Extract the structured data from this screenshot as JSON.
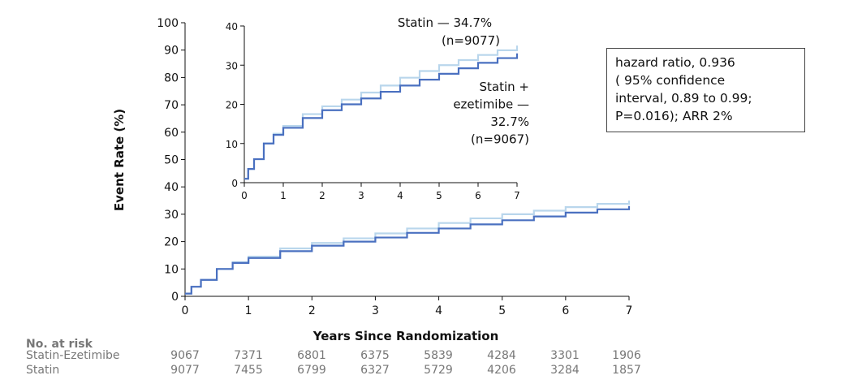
{
  "chart_data": [
    {
      "type": "line",
      "name": "main",
      "ylabel": "Event Rate (%)",
      "xlabel": "Years Since Randomization",
      "xlim": [
        0,
        7
      ],
      "ylim": [
        0,
        100
      ],
      "xticks": [
        0,
        1,
        2,
        3,
        4,
        5,
        6,
        7
      ],
      "yticks": [
        0,
        10,
        20,
        30,
        40,
        50,
        60,
        70,
        80,
        90,
        100
      ],
      "grid": false,
      "series": [
        {
          "name": "Statin",
          "color": "#b9d6ec",
          "x": [
            0,
            0.1,
            0.25,
            0.5,
            0.75,
            1,
            1.5,
            2,
            2.5,
            3,
            3.5,
            4,
            4.5,
            5,
            5.5,
            6,
            6.5,
            7
          ],
          "y": [
            1,
            3.5,
            6,
            10,
            12.5,
            14.5,
            17.5,
            19.5,
            21.2,
            23,
            24.8,
            26.8,
            28.5,
            30,
            31.3,
            32.6,
            33.8,
            35
          ]
        },
        {
          "name": "Statin + ezetimibe",
          "color": "#4a70c0",
          "x": [
            0,
            0.1,
            0.25,
            0.5,
            0.75,
            1,
            1.5,
            2,
            2.5,
            3,
            3.5,
            4,
            4.5,
            5,
            5.5,
            6,
            6.5,
            7
          ],
          "y": [
            1,
            3.5,
            6,
            10,
            12.2,
            14,
            16.5,
            18.5,
            20,
            21.5,
            23.2,
            24.8,
            26.3,
            27.8,
            29.2,
            30.6,
            31.8,
            33
          ]
        }
      ]
    },
    {
      "type": "line",
      "name": "inset",
      "xlim": [
        0,
        7
      ],
      "ylim": [
        0,
        40
      ],
      "xticks": [
        0,
        1,
        2,
        3,
        4,
        5,
        6,
        7
      ],
      "yticks": [
        0,
        10,
        20,
        30,
        40
      ],
      "annotations": [
        {
          "lines": [
            "Statin — 34.7%",
            "(n=9077)"
          ]
        },
        {
          "lines": [
            "Statin +",
            "ezetimibe —",
            "32.7%",
            "(n=9067)"
          ]
        }
      ],
      "series": [
        {
          "name": "Statin",
          "color": "#b9d6ec",
          "x": [
            0,
            0.1,
            0.25,
            0.5,
            0.75,
            1,
            1.5,
            2,
            2.5,
            3,
            3.5,
            4,
            4.5,
            5,
            5.5,
            6,
            6.5,
            7
          ],
          "y": [
            1,
            3.5,
            6,
            10,
            12.5,
            14.5,
            17.5,
            19.5,
            21.2,
            23,
            24.8,
            26.8,
            28.5,
            30,
            31.3,
            32.6,
            33.8,
            35
          ]
        },
        {
          "name": "Statin + ezetimibe",
          "color": "#4a70c0",
          "x": [
            0,
            0.1,
            0.25,
            0.5,
            0.75,
            1,
            1.5,
            2,
            2.5,
            3,
            3.5,
            4,
            4.5,
            5,
            5.5,
            6,
            6.5,
            7
          ],
          "y": [
            1,
            3.5,
            6,
            10,
            12.2,
            14,
            16.5,
            18.5,
            20,
            21.5,
            23.2,
            24.8,
            26.3,
            27.8,
            29.2,
            30.6,
            31.8,
            33
          ]
        }
      ]
    }
  ],
  "hr_box": {
    "line1": "hazard ratio, 0.936",
    "line2": "( 95% confidence",
    "line3": "interval, 0.89 to 0.99;",
    "line4": "P=0.016); ARR 2%"
  },
  "risk_table": {
    "title": "No. at risk",
    "rows": [
      {
        "label": "Statin-Ezetimibe",
        "values": [
          "9067",
          "7371",
          "6801",
          "6375",
          "5839",
          "4284",
          "3301",
          "1906"
        ]
      },
      {
        "label": "Statin",
        "values": [
          "9077",
          "7455",
          "6799",
          "6327",
          "5729",
          "4206",
          "3284",
          "1857"
        ]
      }
    ]
  }
}
